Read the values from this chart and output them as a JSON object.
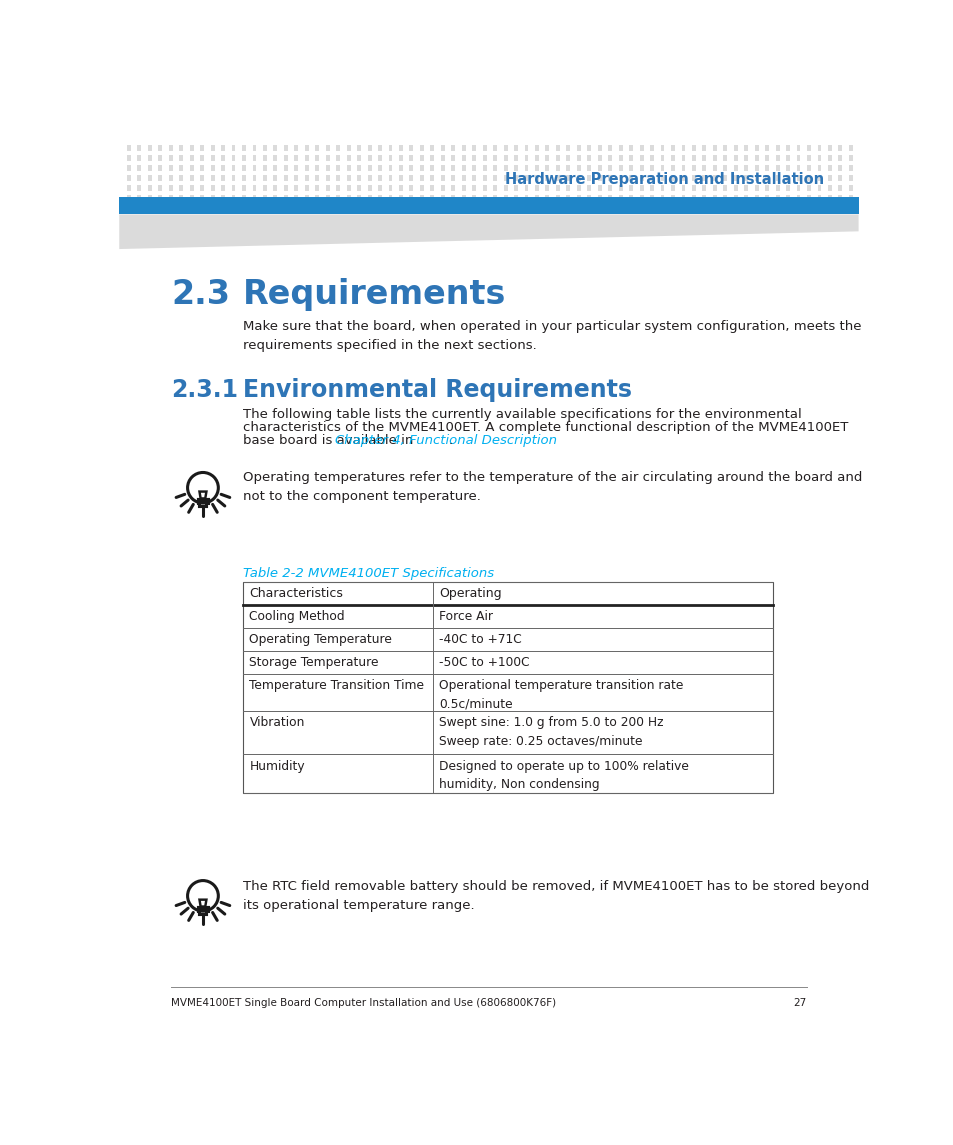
{
  "header_title": "Hardware Preparation and Installation",
  "header_title_color": "#2E75B6",
  "section_number": "2.3",
  "section_title": "Requirements",
  "section_color": "#2E75B6",
  "section_body": "Make sure that the board, when operated in your particular system configuration, meets the\nrequirements specified in the next sections.",
  "subsection_number": "2.3.1",
  "subsection_title": "Environmental Requirements",
  "subsection_body_line1": "The following table lists the currently available specifications for the environmental",
  "subsection_body_line2": "characteristics of the MVME4100ET. A complete functional description of the MVME4100ET",
  "subsection_body_line3_pre": "base board is available in ",
  "subsection_body_link": "Chapter 4, Functional Description",
  "subsection_body_end": ".",
  "tip1_text": "Operating temperatures refer to the temperature of the air circulating around the board and\nnot to the component temperature.",
  "table_caption": "Table 2-2 MVME4100ET Specifications",
  "table_caption_color": "#00B0F0",
  "table_header": [
    "Characteristics",
    "Operating"
  ],
  "table_rows": [
    [
      "Cooling Method",
      "Force Air"
    ],
    [
      "Operating Temperature",
      "-40C to +71C"
    ],
    [
      "Storage Temperature",
      "-50C to +100C"
    ],
    [
      "Temperature Transition Time",
      "Operational temperature transition rate\n0.5c/minute"
    ],
    [
      "Vibration",
      "Swept sine: 1.0 g from 5.0 to 200 Hz\nSweep rate: 0.25 octaves/minute"
    ],
    [
      "Humidity",
      "Designed to operate up to 100% relative\nhumidity, Non condensing"
    ]
  ],
  "tip2_text": "The RTC field removable battery should be removed, if MVME4100ET has to be stored beyond\nits operational temperature range.",
  "footer_text": "MVME4100ET Single Board Computer Installation and Use (6806800K76F)",
  "footer_page": "27",
  "bg_color": "#FFFFFF",
  "text_color": "#231F20",
  "body_font_size": 9.5,
  "dot_grid_color": "#CCCCCC",
  "blue_bar_color": "#1F86C8",
  "link_color": "#00B0F0"
}
